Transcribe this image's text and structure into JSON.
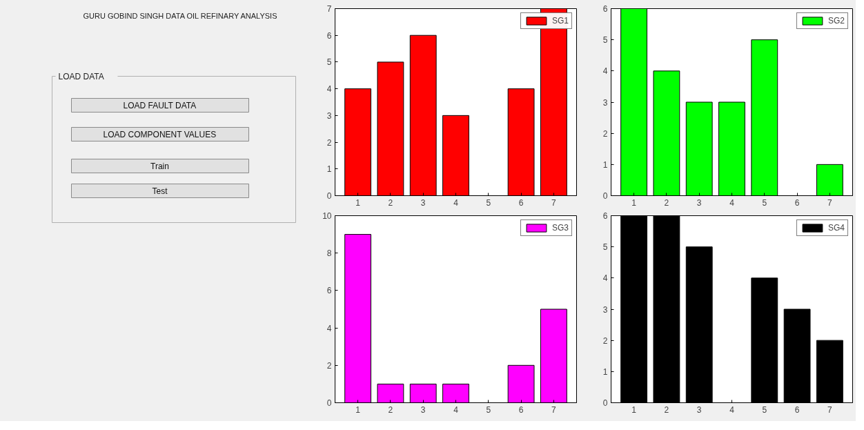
{
  "chart_data": [
    {
      "type": "other",
      "title": "GURU GOBIND SINGH DATA OIL REFINARY ANALYSIS",
      "subtitle": "LOAD DATA",
      "annotations": [
        "LOAD FAULT DATA",
        "LOAD COMPONENT VALUES",
        "Train",
        "Test"
      ]
    },
    {
      "type": "bar",
      "categories": [
        "1",
        "2",
        "3",
        "4",
        "5",
        "6",
        "7"
      ],
      "series": [
        {
          "name": "SG1",
          "color": "#ff0000",
          "values": [
            4,
            5,
            6,
            3,
            0,
            4,
            7
          ]
        }
      ],
      "ylim": [
        0,
        7
      ],
      "yticks": [
        0,
        1,
        2,
        3,
        4,
        5,
        6,
        7
      ],
      "grid": false,
      "legend": "top right"
    },
    {
      "type": "bar",
      "categories": [
        "1",
        "2",
        "3",
        "4",
        "5",
        "6",
        "7"
      ],
      "series": [
        {
          "name": "SG2",
          "color": "#00ff00",
          "values": [
            6,
            4,
            3,
            3,
            5,
            0,
            1
          ]
        }
      ],
      "ylim": [
        0,
        6
      ],
      "yticks": [
        0,
        1,
        2,
        3,
        4,
        5,
        6
      ],
      "grid": false,
      "legend": "top right"
    },
    {
      "type": "bar",
      "categories": [
        "1",
        "2",
        "3",
        "4",
        "5",
        "6",
        "7"
      ],
      "series": [
        {
          "name": "SG3",
          "color": "#ff00ff",
          "values": [
            9,
            1,
            1,
            1,
            0,
            2,
            5
          ]
        }
      ],
      "ylim": [
        0,
        10
      ],
      "yticks": [
        0,
        2,
        4,
        6,
        8,
        10
      ],
      "grid": false,
      "legend": "top right"
    },
    {
      "type": "bar",
      "categories": [
        "1",
        "2",
        "3",
        "4",
        "5",
        "6",
        "7"
      ],
      "series": [
        {
          "name": "SG4",
          "color": "#000000",
          "values": [
            6,
            6,
            5,
            0,
            4,
            3,
            2
          ]
        }
      ],
      "ylim": [
        0,
        6
      ],
      "yticks": [
        0,
        1,
        2,
        3,
        4,
        5,
        6
      ],
      "grid": false,
      "legend": "top right"
    }
  ]
}
